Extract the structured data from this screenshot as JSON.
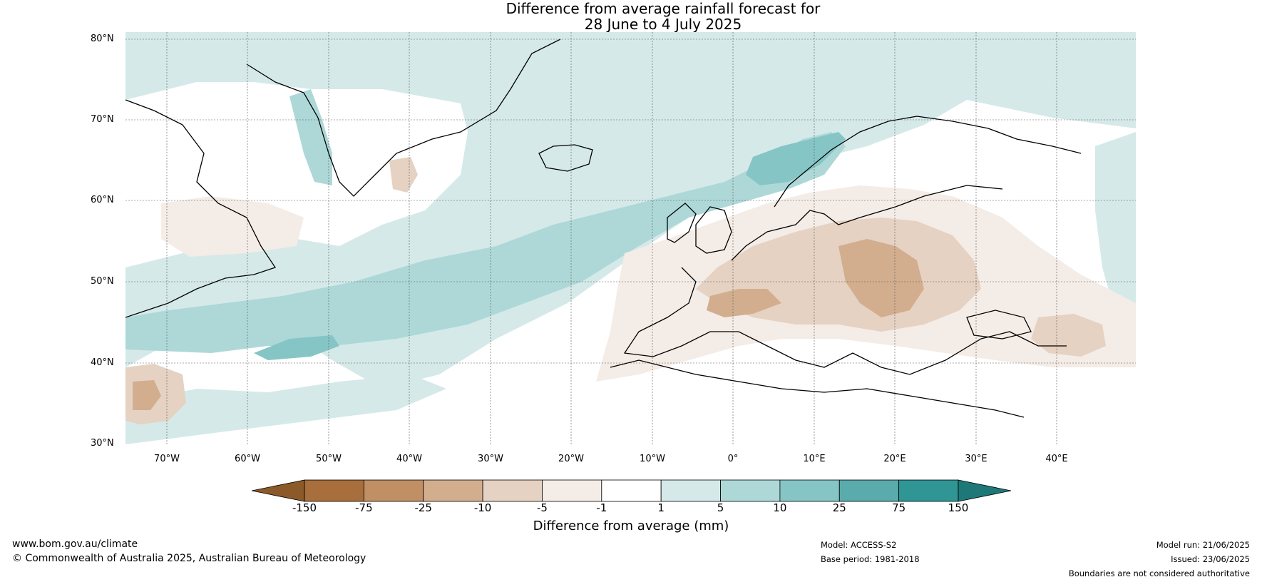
{
  "title_line1": "Difference from average rainfall forecast for",
  "title_line2": "28 June to 4 July 2025",
  "latitude_ticks": [
    "80°N",
    "70°N",
    "60°N",
    "50°N",
    "40°N",
    "30°N"
  ],
  "longitude_ticks": [
    "70°W",
    "60°W",
    "50°W",
    "40°W",
    "30°W",
    "20°W",
    "10°W",
    "0°",
    "10°E",
    "20°E",
    "30°E",
    "40°E"
  ],
  "legend": {
    "title": "Difference from average (mm)",
    "boundaries": [
      "-150",
      "-75",
      "-25",
      "-10",
      "-5",
      "-1",
      "1",
      "5",
      "10",
      "25",
      "75",
      "150"
    ],
    "colors": [
      "#8c5a28",
      "#a86f3c",
      "#c08f64",
      "#d2ae8f",
      "#e5d2c2",
      "#f4ece6",
      "#ffffff",
      "#d5e9e9",
      "#aed8d8",
      "#86c5c5",
      "#5aabab",
      "#2f9595",
      "#1f7878"
    ]
  },
  "footer": {
    "website": "www.bom.gov.au/climate",
    "copyright": "© Commonwealth of Australia 2025, Australian Bureau of Meteorology",
    "model": "Model: ACCESS-S2",
    "base_period": "Base period: 1981-2018",
    "model_run": "Model run: 21/06/2025",
    "issued": "Issued: 23/06/2025",
    "disclaimer": "Boundaries are not considered authoritative"
  }
}
